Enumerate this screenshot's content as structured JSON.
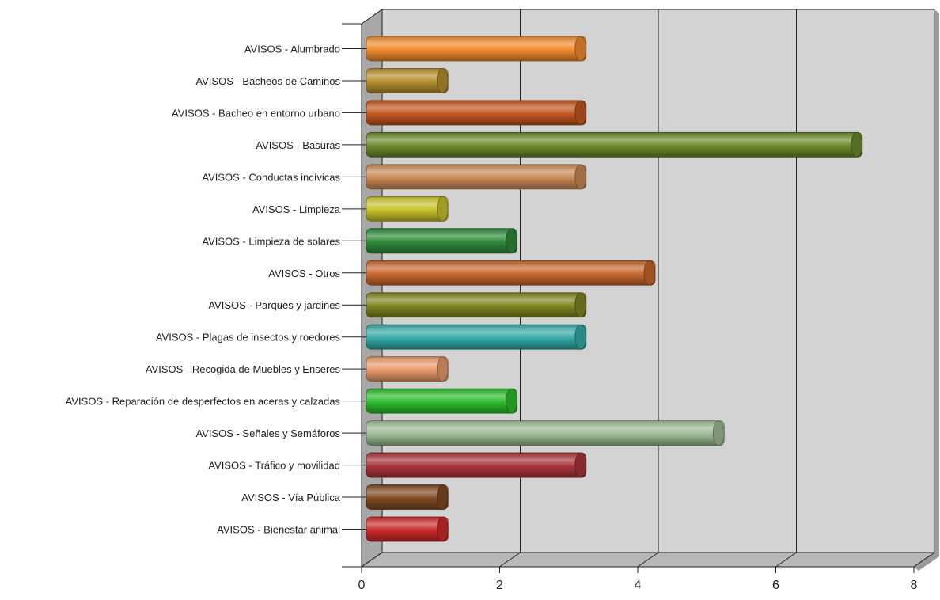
{
  "chart_data": {
    "type": "bar",
    "orientation": "horizontal",
    "style": "3d-cylinder",
    "title": "",
    "xlabel": "",
    "ylabel": "",
    "xlim": [
      0,
      8
    ],
    "x_ticks": [
      "0",
      "2",
      "4",
      "6",
      "8"
    ],
    "grid": true,
    "legend": "none",
    "categories": [
      "AVISOS - Alumbrado",
      "AVISOS - Bacheos de Caminos",
      "AVISOS - Bacheo en entorno urbano",
      "AVISOS - Basuras",
      "AVISOS - Conductas incívicas",
      "AVISOS - Limpieza",
      "AVISOS - Limpieza de solares",
      "AVISOS - Otros",
      "AVISOS - Parques y jardines",
      "AVISOS - Plagas de insectos y roedores",
      "AVISOS - Recogida de Muebles y Enseres",
      "AVISOS - Reparación de desperfectos en aceras y calzadas",
      "AVISOS - Señales y Semáforos",
      "AVISOS - Tráfico y movilidad",
      "AVISOS - Vía Pública",
      "AVISOS - Bienestar animal"
    ],
    "values": [
      3,
      1,
      3,
      7,
      3,
      1,
      2,
      4,
      3,
      3,
      1,
      2,
      5,
      3,
      1,
      1
    ],
    "colors": [
      "#f18c2e",
      "#b58e2e",
      "#c2561f",
      "#6b8a2c",
      "#c98a55",
      "#c9c12a",
      "#2e8a3a",
      "#c8672e",
      "#7f8520",
      "#36aaa6",
      "#e89b6c",
      "#2cbc2c",
      "#9dbb95",
      "#a8353b",
      "#7f4a22",
      "#cc2a2a"
    ]
  }
}
